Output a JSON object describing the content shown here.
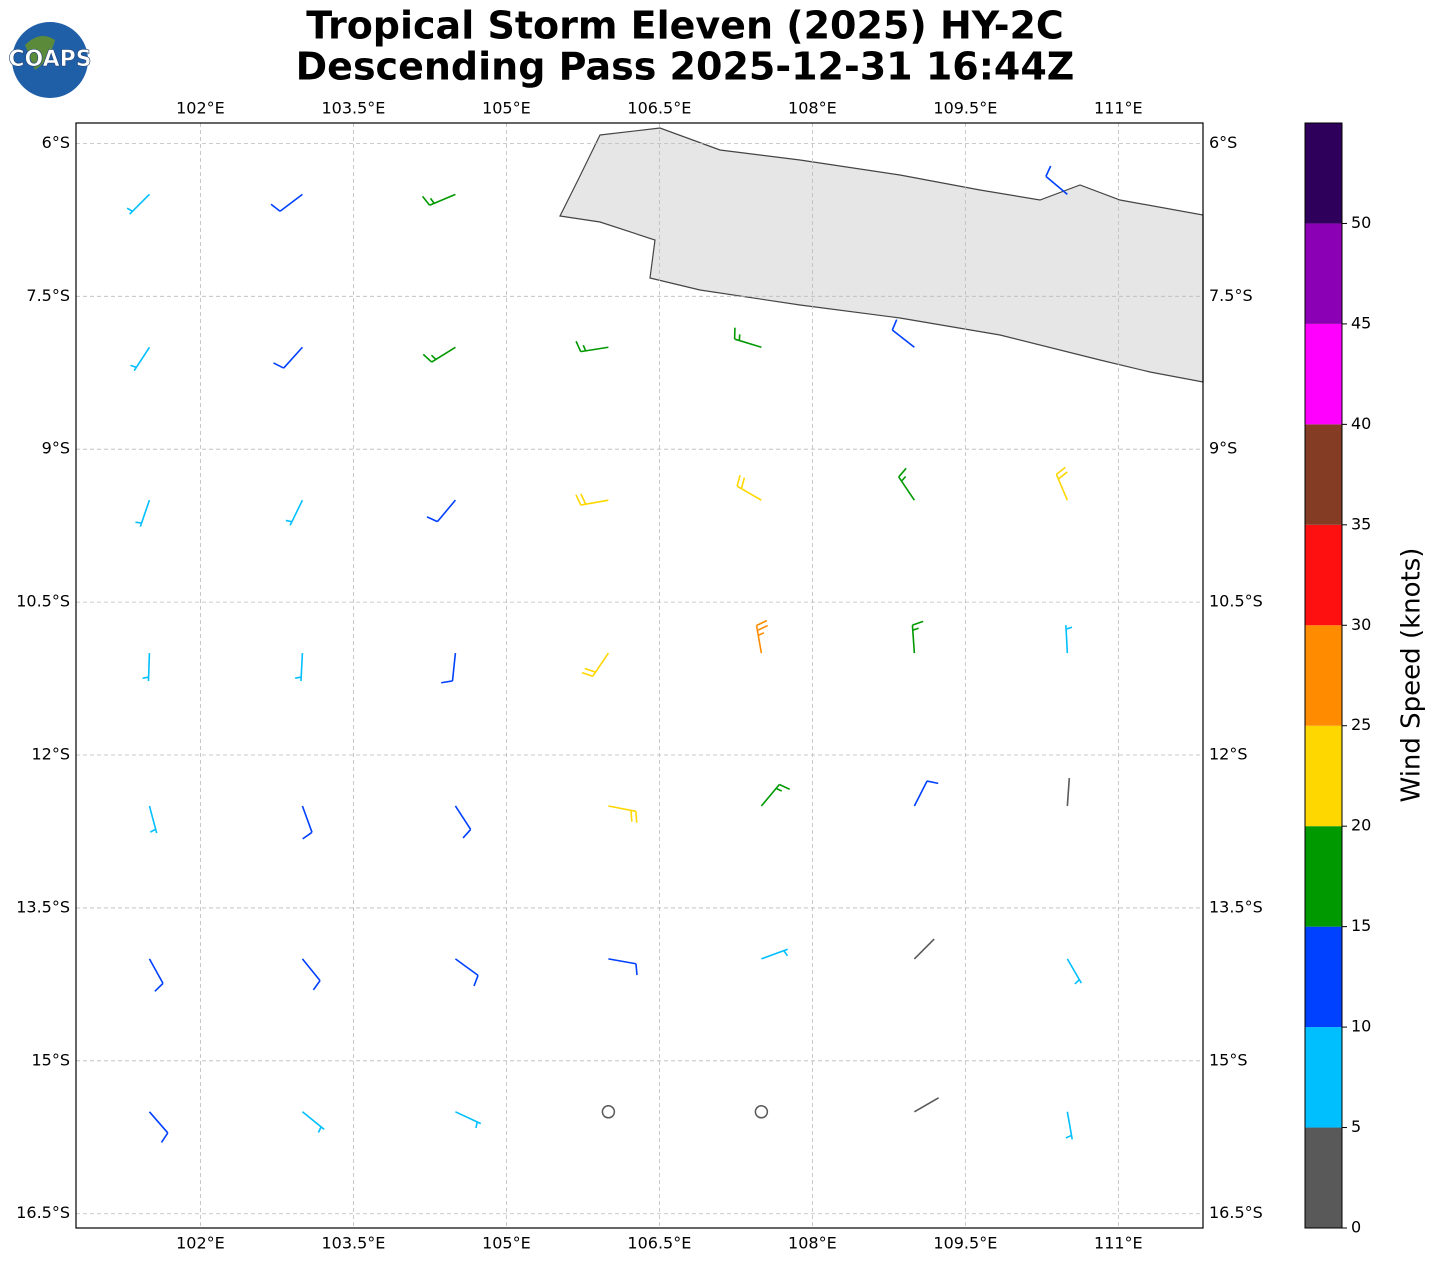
{
  "chart_data": {
    "type": "barbs",
    "logo": "COAPS",
    "title": "Tropical Storm Eleven (2025) HY-2C",
    "subtitle": "Descending Pass 2025-12-31 16:44Z",
    "xlim": [
      100.78,
      111.83
    ],
    "ylim": [
      -16.64,
      -5.8
    ],
    "xticks": [
      {
        "value": 102,
        "label": "102°E"
      },
      {
        "value": 103.5,
        "label": "103.5°E"
      },
      {
        "value": 105,
        "label": "105°E"
      },
      {
        "value": 106.5,
        "label": "106.5°E"
      },
      {
        "value": 108,
        "label": "108°E"
      },
      {
        "value": 109.5,
        "label": "109.5°E"
      },
      {
        "value": 111,
        "label": "111°E"
      }
    ],
    "yticks": [
      {
        "value": -6,
        "label": "6°S"
      },
      {
        "value": -7.5,
        "label": "7.5°S"
      },
      {
        "value": -9,
        "label": "9°S"
      },
      {
        "value": -10.5,
        "label": "10.5°S"
      },
      {
        "value": -12,
        "label": "12°S"
      },
      {
        "value": -13.5,
        "label": "13.5°S"
      },
      {
        "value": -15,
        "label": "15°S"
      },
      {
        "value": -16.5,
        "label": "16.5°S"
      }
    ],
    "grid": true,
    "barbs": {
      "lon": [
        101.5,
        103,
        104.5,
        110.5,
        101.5,
        103,
        104.5,
        106,
        107.5,
        109,
        101.5,
        103,
        104.5,
        106,
        107.5,
        109,
        110.5,
        101.5,
        103,
        104.5,
        106,
        107.5,
        109,
        110.5,
        101.5,
        103,
        104.5,
        106,
        107.5,
        109,
        110.5,
        101.5,
        103,
        104.5,
        106,
        107.5,
        109,
        110.5,
        101.5,
        103,
        104.5,
        106,
        107.5,
        109,
        110.5
      ],
      "lat": [
        -6.5,
        -6.5,
        -6.5,
        -6.5,
        -8,
        -8,
        -8,
        -8,
        -8,
        -8,
        -9.5,
        -9.5,
        -9.5,
        -9.5,
        -9.5,
        -9.5,
        -9.5,
        -11,
        -11,
        -11,
        -11,
        -11,
        -11,
        -11,
        -12.5,
        -12.5,
        -12.5,
        -12.5,
        -12.5,
        -12.5,
        -12.5,
        -14,
        -14,
        -14,
        -14,
        -14,
        -14,
        -14,
        -15.5,
        -15.5,
        -15.5,
        -15.5,
        -15.5,
        -15.5,
        -15.5
      ],
      "speed": [
        8,
        12,
        18,
        12,
        7,
        10,
        17,
        18,
        18,
        14,
        6,
        8,
        14,
        22,
        22,
        17,
        22,
        5,
        8,
        14,
        22,
        28,
        17,
        8,
        6,
        10,
        14,
        20,
        18,
        12,
        3,
        10,
        12,
        12,
        12,
        7,
        4,
        6,
        12,
        9,
        8,
        2,
        0,
        3,
        7
      ],
      "direction": [
        225,
        233,
        247,
        310,
        213,
        222,
        238,
        261,
        287,
        308,
        199,
        206,
        220,
        260,
        300,
        326,
        337,
        182,
        183,
        186,
        214,
        350,
        356,
        357,
        165,
        160,
        147,
        101,
        40,
        27,
        4,
        151,
        141,
        126,
        100,
        70,
        45,
        150,
        139,
        129,
        115,
        90,
        0,
        60,
        170
      ]
    },
    "colorbar": {
      "label": "Wind Speed (knots)",
      "bounds": [
        0,
        5,
        10,
        15,
        20,
        25,
        30,
        35,
        40,
        45,
        50,
        55
      ],
      "colors": [
        "#595959",
        "#00bfff",
        "#0040ff",
        "#009900",
        "#ffd700",
        "#ff8c00",
        "#ff1010",
        "#843c24",
        "#ff00ff",
        "#8b00b5",
        "#2e005c"
      ],
      "ticks": [
        0,
        5,
        10,
        15,
        20,
        25,
        30,
        35,
        40,
        45,
        50
      ]
    }
  }
}
